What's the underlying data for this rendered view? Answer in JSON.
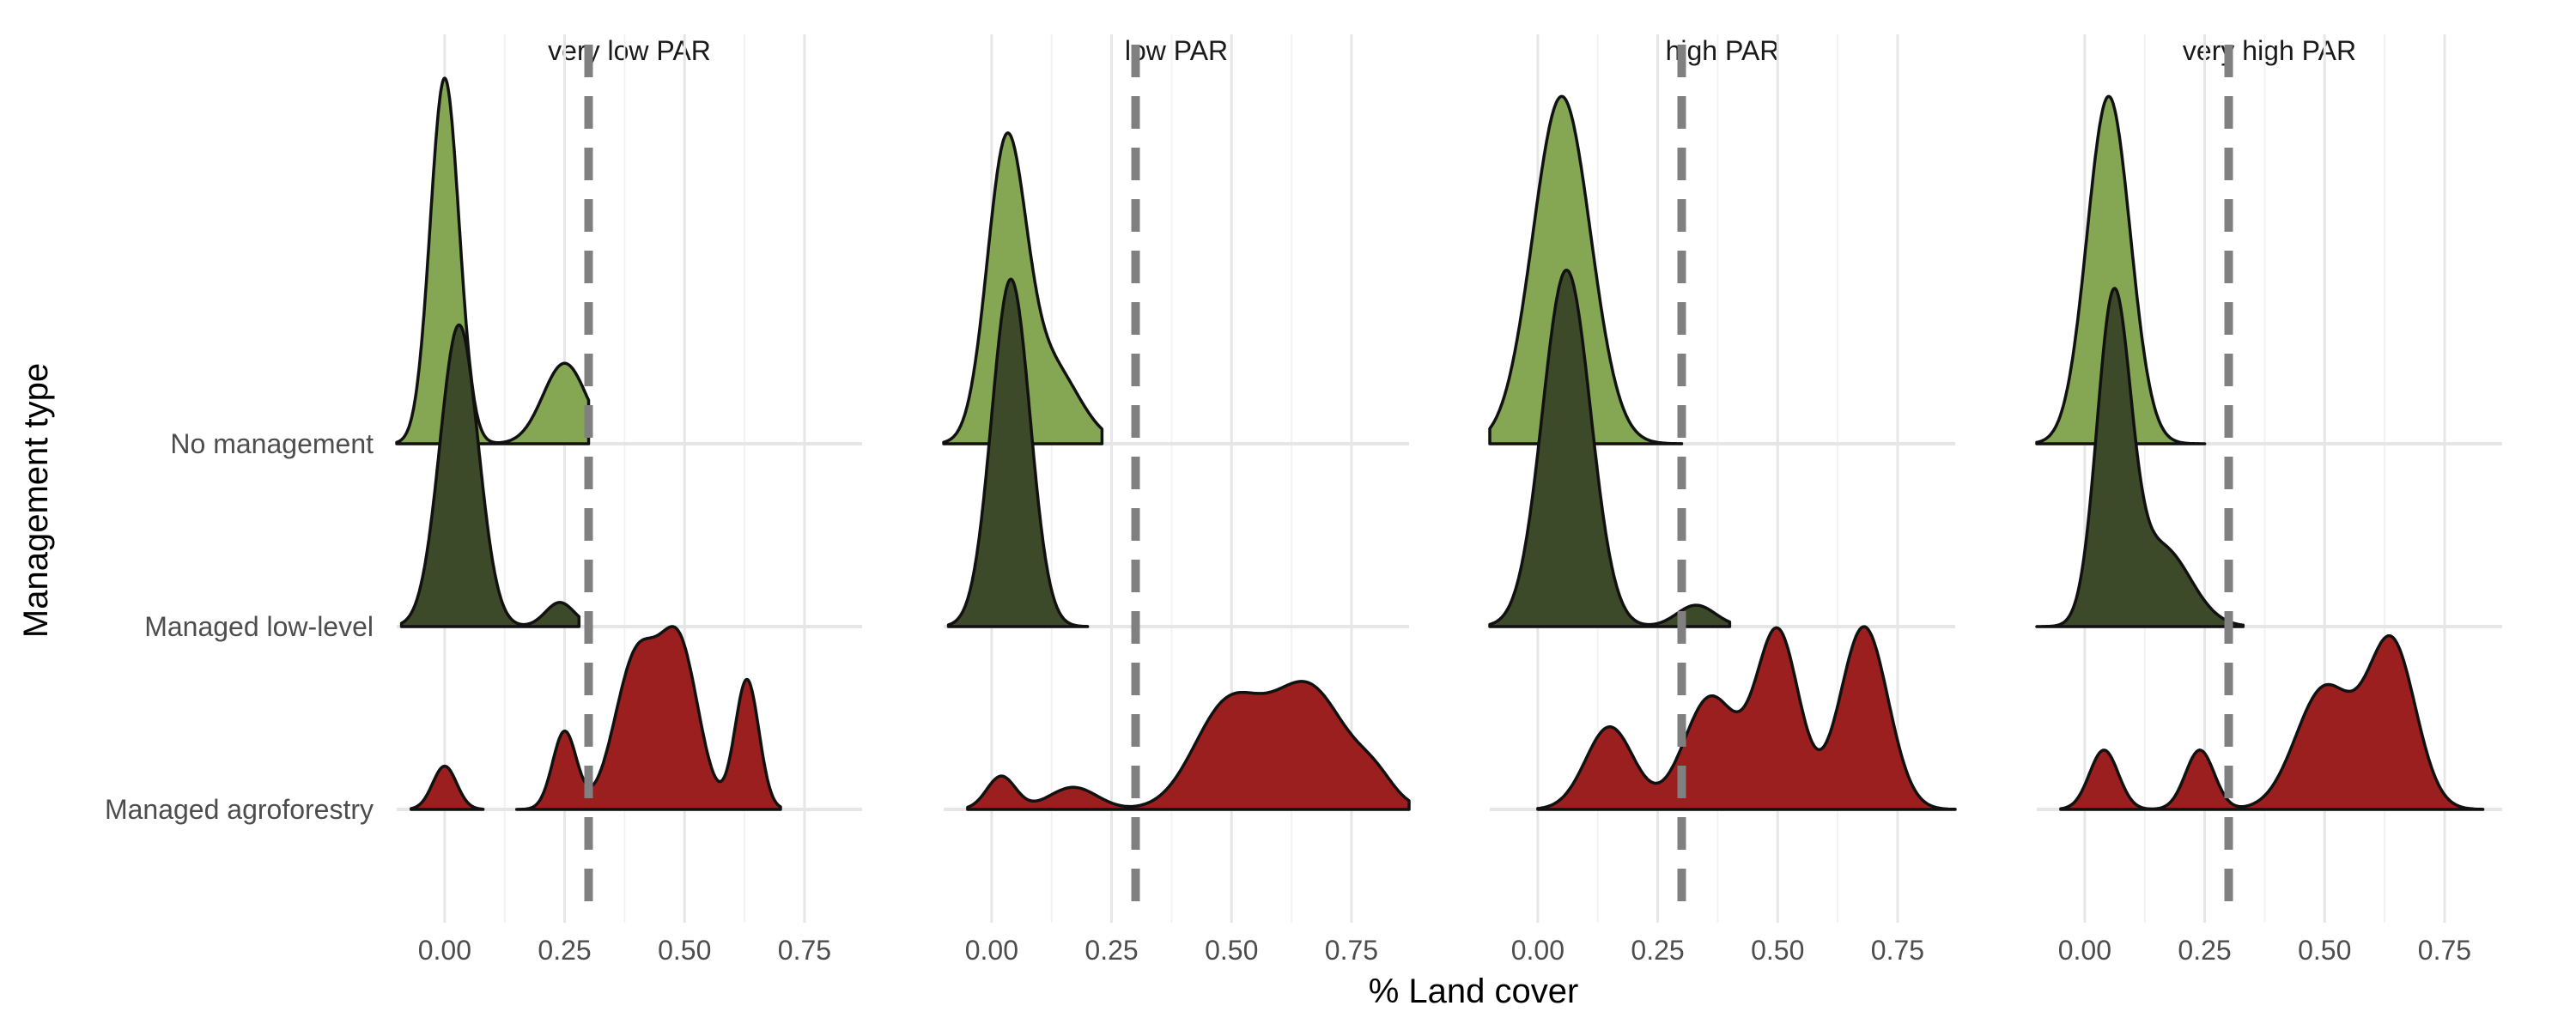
{
  "chart_data": {
    "type": "ridgeline",
    "xlabel": "% Land cover",
    "ylabel": "Management type",
    "xlim": [
      -0.1,
      0.87
    ],
    "x_ticks": [
      0.0,
      0.25,
      0.5,
      0.75
    ],
    "x_tick_labels": [
      "0.00",
      "0.25",
      "0.50",
      "0.75"
    ],
    "threshold_x": 0.3,
    "categories": [
      "No management",
      "Managed low-level",
      "Managed agroforestry"
    ],
    "colors": {
      "No management": "#85a653",
      "Managed low-level": "#3c4a2a",
      "Managed agroforestry": "#9a1f1e",
      "threshold": "#808080"
    },
    "facets": [
      {
        "title": "very low PAR",
        "series": [
          {
            "category": "No management",
            "range": [
              -0.1,
              0.3
            ],
            "peak": 2.0,
            "components": [
              [
                0.0,
                0.03,
                1.0
              ],
              [
                0.25,
                0.045,
                0.22
              ]
            ]
          },
          {
            "category": "Managed low-level",
            "range": [
              -0.09,
              0.28
            ],
            "peak": 1.65,
            "components": [
              [
                0.03,
                0.04,
                1.0
              ],
              [
                0.24,
                0.03,
                0.08
              ]
            ]
          },
          {
            "category": "Managed agroforestry",
            "range": [
              -0.07,
              0.7
            ],
            "peak": 1.0,
            "segments": [
              [
                -0.07,
                0.08
              ],
              [
                0.15,
                0.7
              ]
            ],
            "components": [
              [
                0.0,
                0.025,
                0.1
              ],
              [
                0.25,
                0.025,
                0.18
              ],
              [
                0.4,
                0.045,
                0.35
              ],
              [
                0.49,
                0.04,
                0.36
              ],
              [
                0.63,
                0.025,
                0.3
              ]
            ]
          }
        ]
      },
      {
        "title": "low PAR",
        "series": [
          {
            "category": "No management",
            "range": [
              -0.1,
              0.23
            ],
            "peak": 1.7,
            "components": [
              [
                0.03,
                0.04,
                1.0
              ],
              [
                0.12,
                0.06,
                0.28
              ]
            ]
          },
          {
            "category": "Managed low-level",
            "range": [
              -0.09,
              0.2
            ],
            "peak": 1.9,
            "components": [
              [
                0.04,
                0.04,
                1.0
              ]
            ]
          },
          {
            "category": "Managed agroforestry",
            "range": [
              -0.05,
              0.87
            ],
            "peak": 0.7,
            "components": [
              [
                0.02,
                0.03,
                0.15
              ],
              [
                0.17,
                0.05,
                0.1
              ],
              [
                0.49,
                0.07,
                0.45
              ],
              [
                0.66,
                0.08,
                0.55
              ],
              [
                0.8,
                0.04,
                0.1
              ]
            ]
          }
        ]
      },
      {
        "title": "high PAR",
        "series": [
          {
            "category": "No management",
            "range": [
              -0.1,
              0.3
            ],
            "peak": 1.9,
            "components": [
              [
                0.05,
                0.06,
                1.0
              ]
            ]
          },
          {
            "category": "Managed low-level",
            "range": [
              -0.1,
              0.4
            ],
            "peak": 1.95,
            "components": [
              [
                0.06,
                0.05,
                1.0
              ],
              [
                0.33,
                0.04,
                0.06
              ]
            ]
          },
          {
            "category": "Managed agroforestry",
            "range": [
              0.0,
              0.87
            ],
            "peak": 1.0,
            "components": [
              [
                0.15,
                0.05,
                0.28
              ],
              [
                0.36,
                0.055,
                0.38
              ],
              [
                0.5,
                0.045,
                0.6
              ],
              [
                0.68,
                0.05,
                0.62
              ]
            ]
          }
        ]
      },
      {
        "title": "very high PAR",
        "series": [
          {
            "category": "No management",
            "range": [
              -0.1,
              0.25
            ],
            "peak": 1.9,
            "components": [
              [
                0.05,
                0.045,
                1.0
              ]
            ]
          },
          {
            "category": "Managed low-level",
            "range": [
              -0.1,
              0.33
            ],
            "peak": 1.85,
            "components": [
              [
                0.06,
                0.035,
                1.0
              ],
              [
                0.16,
                0.06,
                0.25
              ]
            ]
          },
          {
            "category": "Managed agroforestry",
            "range": [
              -0.05,
              0.83
            ],
            "peak": 0.95,
            "components": [
              [
                0.04,
                0.03,
                0.27
              ],
              [
                0.24,
                0.03,
                0.27
              ],
              [
                0.5,
                0.06,
                0.55
              ],
              [
                0.64,
                0.05,
                0.75
              ]
            ]
          }
        ]
      }
    ]
  }
}
